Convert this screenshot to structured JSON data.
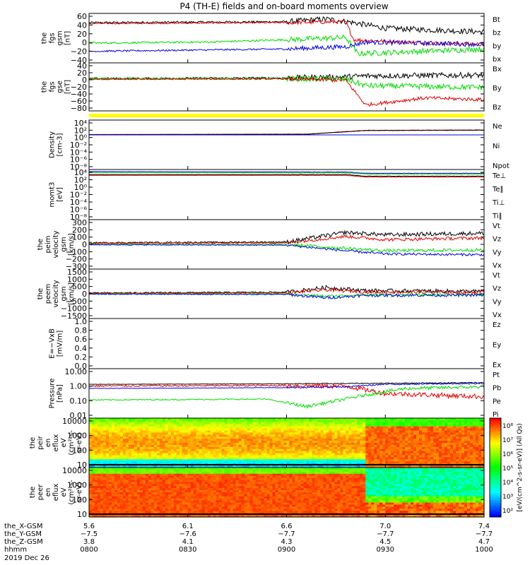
{
  "title": "P4 (TH-E) fields and on-board moments overview",
  "colors": {
    "black": "#000000",
    "red": "#e00000",
    "green": "#00dd00",
    "blue": "#0000e0",
    "yellow": "#ffff00"
  },
  "chart_data": [
    {
      "type": "line",
      "panel": "fgs-gsm",
      "ylabel": [
        "the",
        "fgs",
        "gsm",
        "[nT]"
      ],
      "yticks": [
        "60",
        "40",
        "20",
        "0",
        "−20",
        "−40"
      ],
      "ylim": [
        -45,
        62
      ],
      "series": [
        {
          "name": "Bt",
          "color": "black",
          "profile": [
            [
              0,
              42
            ],
            [
              0.5,
              44
            ],
            [
              0.6,
              50
            ],
            [
              0.67,
              42
            ],
            [
              0.75,
              30
            ],
            [
              1,
              22
            ]
          ],
          "noise": 6
        },
        {
          "name": "bz",
          "color": "red",
          "profile": [
            [
              0,
              40
            ],
            [
              0.5,
              42
            ],
            [
              0.65,
              44
            ],
            [
              0.67,
              5
            ],
            [
              0.8,
              0
            ],
            [
              1,
              -5
            ]
          ],
          "noise": 4
        },
        {
          "name": "by",
          "color": "green",
          "profile": [
            [
              0,
              -2
            ],
            [
              0.3,
              0
            ],
            [
              0.5,
              5
            ],
            [
              0.65,
              10
            ],
            [
              0.68,
              -25
            ],
            [
              1,
              -15
            ]
          ],
          "noise": 6
        },
        {
          "name": "bx",
          "color": "blue",
          "profile": [
            [
              0,
              -20
            ],
            [
              0.5,
              -15
            ],
            [
              0.65,
              -10
            ],
            [
              0.7,
              0
            ],
            [
              1,
              -5
            ]
          ],
          "noise": 5
        }
      ]
    },
    {
      "type": "line",
      "panel": "fgs-gse",
      "ylabel": [
        "the",
        "fgs",
        "gse",
        "[nT]"
      ],
      "yticks": [
        "40",
        "20",
        "0",
        "−20",
        "−40",
        "−60",
        "−80"
      ],
      "ylim": [
        -92,
        45
      ],
      "series": [
        {
          "name": "Bx",
          "color": "black",
          "profile": [
            [
              0,
              0
            ],
            [
              0.5,
              2
            ],
            [
              0.65,
              5
            ],
            [
              0.7,
              8
            ],
            [
              1,
              10
            ]
          ],
          "noise": 8
        },
        {
          "name": "By",
          "color": "green",
          "profile": [
            [
              0,
              0
            ],
            [
              0.5,
              0
            ],
            [
              0.65,
              -2
            ],
            [
              0.7,
              -20
            ],
            [
              1,
              -25
            ]
          ],
          "noise": 8
        },
        {
          "name": "Bz",
          "color": "red",
          "profile": [
            [
              0,
              -2
            ],
            [
              0.5,
              -1
            ],
            [
              0.65,
              -5
            ],
            [
              0.7,
              -75
            ],
            [
              0.85,
              -55
            ],
            [
              1,
              -60
            ]
          ],
          "noise": 5
        }
      ]
    },
    {
      "type": "line",
      "panel": "density",
      "ylabel": [
        "Density",
        "[cm-3]"
      ],
      "yticks": [
        "10⁴",
        "10²",
        "10⁰",
        "10⁻²",
        "10⁻⁴",
        "10⁻⁶",
        "10⁻⁸"
      ],
      "ylim": [
        -8,
        4
      ],
      "series": [
        {
          "name": "Ne",
          "color": "red",
          "profile": [
            [
              0,
              0.5
            ],
            [
              0.55,
              0.6
            ],
            [
              0.7,
              1.5
            ],
            [
              1,
              1.6
            ]
          ],
          "noise": 0.05
        },
        {
          "name": "Ni",
          "color": "black",
          "profile": [
            [
              0,
              0.45
            ],
            [
              0.55,
              0.55
            ],
            [
              0.7,
              1.45
            ],
            [
              1,
              1.55
            ]
          ],
          "noise": 0.05
        },
        {
          "name": "Npot",
          "color": "blue",
          "profile": [
            [
              0,
              0.4
            ],
            [
              1,
              0.4
            ]
          ],
          "noise": 0
        }
      ]
    },
    {
      "type": "line",
      "panel": "moments-temp",
      "ylabel": [
        "momt3",
        "[eV]"
      ],
      "yticks": [
        "10⁴",
        "10²",
        "10⁰",
        "10⁻²",
        "10⁻⁴",
        "10⁻⁶",
        "10⁻⁸"
      ],
      "ylim": [
        -8,
        4
      ],
      "series": [
        {
          "name": "Te⊥",
          "color": "red",
          "profile": [
            [
              0,
              2.6
            ],
            [
              0.65,
              2.6
            ],
            [
              0.7,
              2.2
            ],
            [
              1,
              2.2
            ]
          ],
          "noise": 0.05
        },
        {
          "name": "Te∥",
          "color": "black",
          "profile": [
            [
              0,
              2.8
            ],
            [
              0.65,
              2.8
            ],
            [
              0.7,
              2.4
            ],
            [
              1,
              2.4
            ]
          ],
          "noise": 0.05
        },
        {
          "name": "Ti⊥",
          "color": "blue",
          "profile": [
            [
              0,
              3.5
            ],
            [
              0.65,
              3.4
            ],
            [
              0.7,
              3.1
            ],
            [
              1,
              3.1
            ]
          ],
          "noise": 0.05
        },
        {
          "name": "Ti∥",
          "color": "green",
          "profile": [
            [
              0,
              3.3
            ],
            [
              0.65,
              3.2
            ],
            [
              0.7,
              2.9
            ],
            [
              1,
              2.9
            ]
          ],
          "noise": 0.05
        }
      ]
    },
    {
      "type": "line",
      "panel": "peim-velocity",
      "ylabel": [
        "the",
        "peim",
        "velocity",
        "gsm",
        "[km/s]"
      ],
      "yticks": [
        "300",
        "200",
        "100",
        "0",
        "−100",
        "−200",
        "−300"
      ],
      "ylim": [
        -310,
        310
      ],
      "series": [
        {
          "name": "Vt",
          "color": "black",
          "profile": [
            [
              0,
              20
            ],
            [
              0.5,
              30
            ],
            [
              0.65,
              150
            ],
            [
              0.75,
              120
            ],
            [
              1,
              140
            ]
          ],
          "noise": 25
        },
        {
          "name": "Vz",
          "color": "red",
          "profile": [
            [
              0,
              10
            ],
            [
              0.5,
              20
            ],
            [
              0.65,
              100
            ],
            [
              0.75,
              60
            ],
            [
              1,
              80
            ]
          ],
          "noise": 20
        },
        {
          "name": "Vy",
          "color": "green",
          "profile": [
            [
              0,
              0
            ],
            [
              0.5,
              0
            ],
            [
              0.65,
              -50
            ],
            [
              0.75,
              -80
            ],
            [
              1,
              -70
            ]
          ],
          "noise": 20
        },
        {
          "name": "Vx",
          "color": "blue",
          "profile": [
            [
              0,
              -5
            ],
            [
              0.5,
              -10
            ],
            [
              0.65,
              -80
            ],
            [
              0.75,
              -120
            ],
            [
              1,
              -130
            ]
          ],
          "noise": 15
        }
      ]
    },
    {
      "type": "line",
      "panel": "peem-velocity",
      "ylabel": [
        "the",
        "peem",
        "velocity",
        "gsm",
        "[km/s]"
      ],
      "yticks": [
        "1500",
        "1000",
        "500",
        "0",
        "−500",
        "−1000",
        "−1500"
      ],
      "ylim": [
        -1550,
        1550
      ],
      "series": [
        {
          "name": "Vt",
          "color": "black",
          "profile": [
            [
              0,
              50
            ],
            [
              0.5,
              100
            ],
            [
              0.6,
              400
            ],
            [
              0.7,
              200
            ],
            [
              1,
              150
            ]
          ],
          "noise": 120
        },
        {
          "name": "Vz",
          "color": "red",
          "profile": [
            [
              0,
              30
            ],
            [
              0.5,
              60
            ],
            [
              0.6,
              250
            ],
            [
              0.7,
              120
            ],
            [
              1,
              100
            ]
          ],
          "noise": 100
        },
        {
          "name": "Vy",
          "color": "green",
          "profile": [
            [
              0,
              0
            ],
            [
              0.5,
              0
            ],
            [
              0.6,
              -150
            ],
            [
              0.7,
              -60
            ],
            [
              1,
              -50
            ]
          ],
          "noise": 80
        },
        {
          "name": "Vx",
          "color": "blue",
          "profile": [
            [
              0,
              -20
            ],
            [
              0.5,
              -40
            ],
            [
              0.6,
              -250
            ],
            [
              0.7,
              -100
            ],
            [
              1,
              -80
            ]
          ],
          "noise": 90
        }
      ]
    },
    {
      "type": "line",
      "panel": "efield",
      "ylabel": [
        "E=−VxB",
        "[mV/m]"
      ],
      "yticks": [
        "1.0",
        "0.8",
        "0.6",
        "0.4",
        "0.2",
        "0.0"
      ],
      "ylim": [
        0,
        1.0
      ],
      "series": [
        {
          "name": "Ez",
          "color": "red",
          "profile": [],
          "noise": 0
        },
        {
          "name": "Ey",
          "color": "green",
          "profile": [],
          "noise": 0
        },
        {
          "name": "Ex",
          "color": "blue",
          "profile": [],
          "noise": 0
        }
      ]
    },
    {
      "type": "line",
      "panel": "pressure",
      "scale": "log",
      "ylabel": [
        "Pressure",
        "[nPa]"
      ],
      "yticks": [
        "10.00",
        "1.00",
        "0.10",
        "0.01"
      ],
      "ylim": [
        -2,
        1
      ],
      "series": [
        {
          "name": "Pt",
          "color": "black",
          "profile": [
            [
              0,
              0.05
            ],
            [
              0.5,
              0.08
            ],
            [
              0.65,
              0.1
            ],
            [
              1,
              0.15
            ]
          ],
          "noise": 0.03
        },
        {
          "name": "Pb",
          "color": "red",
          "profile": [
            [
              0,
              -0.05
            ],
            [
              0.5,
              -0.02
            ],
            [
              0.65,
              -0.05
            ],
            [
              0.75,
              -0.5
            ],
            [
              1,
              -0.7
            ]
          ],
          "noise": 0.15
        },
        {
          "name": "Pe",
          "color": "green",
          "profile": [
            [
              0,
              -0.9
            ],
            [
              0.45,
              -0.85
            ],
            [
              0.55,
              -1.3
            ],
            [
              0.7,
              -0.6
            ],
            [
              0.8,
              -0.2
            ],
            [
              1,
              -0.1
            ]
          ],
          "noise": 0.1
        },
        {
          "name": "Pi",
          "color": "blue",
          "profile": [
            [
              0,
              -0.2
            ],
            [
              0.5,
              -0.15
            ],
            [
              0.65,
              -0.1
            ],
            [
              0.75,
              0.05
            ],
            [
              1,
              0.1
            ]
          ],
          "noise": 0.04
        }
      ]
    },
    {
      "type": "heatmap",
      "panel": "peir-eflux",
      "ylabel": [
        "the",
        "peir",
        "en",
        "eflux",
        "eV",
        "(cm²-s-",
        "sr-eV)"
      ],
      "yticks": [
        "10000",
        "1000",
        "100",
        "10"
      ],
      "ylim": [
        0.6,
        4.3
      ]
    },
    {
      "type": "heatmap",
      "panel": "peer-eflux",
      "ylabel": [
        "the",
        "peer",
        "en",
        "eflux",
        "eV",
        "(cm²-s-",
        "sr-eV)"
      ],
      "yticks": [
        "10000",
        "1000",
        "100",
        "10"
      ],
      "ylim": [
        0.6,
        4.3
      ]
    }
  ],
  "colorbar": {
    "label": "[eV/(cm^2-s-sr-eV)] (All Qs)",
    "ticks": [
      "10⁸",
      "10⁷",
      "10⁶",
      "10⁵",
      "10⁴",
      "10³",
      "10²"
    ]
  },
  "xaxis": {
    "rows": [
      {
        "label": "the_X-GSM",
        "values": [
          "5.6",
          "6.1",
          "6.6",
          "7.0",
          "7.4"
        ]
      },
      {
        "label": "the_Y-GSM",
        "values": [
          "−7.5",
          "−7.6",
          "−7.7",
          "−7.7",
          "−7.7"
        ]
      },
      {
        "label": "the_Z-GSM",
        "values": [
          "3.8",
          "4.1",
          "4.3",
          "4.5",
          "4.7"
        ]
      },
      {
        "label": "hhmm",
        "values": [
          "0800",
          "0830",
          "0900",
          "0930",
          "1000"
        ]
      }
    ],
    "date": "2019 Dec 26"
  }
}
